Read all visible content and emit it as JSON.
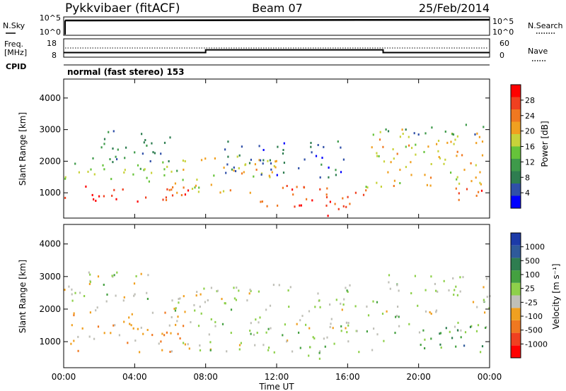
{
  "header": {
    "station": "Pykkvibaer (fitACF)",
    "beam": "Beam 07",
    "date": "25/Feb/2014"
  },
  "nsky_panel": {
    "left_label": "N.Sky",
    "left_ticks": [
      "10^5",
      "10^0"
    ],
    "right_label": "N.Search",
    "right_ticks": [
      "10^5",
      "10^0"
    ]
  },
  "freq_panel": {
    "left_label_1": "Freq.",
    "left_label_2": "[MHz]",
    "left_ticks": [
      "18",
      "8"
    ],
    "right_label": "Nave",
    "right_ticks": [
      "60",
      "0"
    ],
    "cpid_label": "CPID",
    "cpid_text": "normal (fast stereo) 153"
  },
  "colors": {
    "power": [
      "#0000ff",
      "#3050a8",
      "#2e7d50",
      "#3e9a4a",
      "#66c33a",
      "#c8d23a",
      "#f0a020",
      "#f07820",
      "#f04020",
      "#ff0000"
    ],
    "velocity": [
      "#ff0000",
      "#f04020",
      "#f07820",
      "#f0a020",
      "#c0c0b8",
      "#8ed04a",
      "#44a040",
      "#2e7d50",
      "#2f5a9a",
      "#1c3aa8"
    ]
  },
  "chart_data": [
    {
      "type": "heatmap",
      "name": "power",
      "ylabel": "Slant Range [km]",
      "yticks": [
        "4000",
        "3000",
        "2000",
        "1000"
      ],
      "ylim": [
        200,
        4600
      ],
      "xticks": [
        "00:00",
        "04:00",
        "08:00",
        "12:00",
        "16:00",
        "20:00",
        "00:00"
      ],
      "colorbar_label": "Power [dB]",
      "colorbar_ticks": [
        "28",
        "24",
        "20",
        "16",
        "12",
        "8",
        "4"
      ],
      "colorbar_range": [
        0,
        30
      ],
      "bands": [
        {
          "t0": 0,
          "t1": 7,
          "r0": 700,
          "r1": 1300,
          "value": 26
        },
        {
          "t0": 0,
          "t1": 7,
          "r0": 1300,
          "r1": 2000,
          "value": 14
        },
        {
          "t0": 1,
          "t1": 6,
          "r0": 2000,
          "r1": 3000,
          "value": 8
        },
        {
          "t0": 6,
          "t1": 12,
          "r0": 1000,
          "r1": 2300,
          "value": 18
        },
        {
          "t0": 9,
          "t1": 16,
          "r0": 1500,
          "r1": 2700,
          "value": 6
        },
        {
          "t0": 11,
          "t1": 17,
          "r0": 500,
          "r1": 1300,
          "value": 24
        },
        {
          "t0": 13,
          "t1": 15,
          "r0": 300,
          "r1": 800,
          "value": 28
        },
        {
          "t0": 17,
          "t1": 24,
          "r0": 1200,
          "r1": 3100,
          "value": 18
        },
        {
          "t0": 18,
          "t1": 24,
          "r0": 2800,
          "r1": 3200,
          "value": 8
        },
        {
          "t0": 22,
          "t1": 24,
          "r0": 700,
          "r1": 1300,
          "value": 26
        }
      ]
    },
    {
      "type": "heatmap",
      "name": "velocity",
      "ylabel": "Slant Range [km]",
      "yticks": [
        "4000",
        "3000",
        "2000",
        "1000"
      ],
      "ylim": [
        200,
        4600
      ],
      "xticks": [
        "00:00",
        "04:00",
        "08:00",
        "12:00",
        "16:00",
        "20:00",
        "00:00"
      ],
      "xlabel": "Time UT",
      "colorbar_label": "Velocity [m s⁻¹]",
      "colorbar_ticks": [
        "1000",
        "500",
        "100",
        "25",
        "-25",
        "-100",
        "-500",
        "-1000"
      ],
      "colorbar_range": [
        -1000,
        1000
      ],
      "bands": [
        {
          "t0": 0,
          "t1": 7,
          "r0": 700,
          "r1": 2000,
          "value": -300
        },
        {
          "t0": 0,
          "t1": 5,
          "r0": 2000,
          "r1": 3200,
          "value": 0
        },
        {
          "t0": 6,
          "t1": 18,
          "r0": 700,
          "r1": 2800,
          "value": 0
        },
        {
          "t0": 13.5,
          "t1": 15,
          "r0": 500,
          "r1": 1200,
          "value": 200
        },
        {
          "t0": 18,
          "t1": 24,
          "r0": 1300,
          "r1": 3100,
          "value": 0
        },
        {
          "t0": 20,
          "t1": 24,
          "r0": 700,
          "r1": 1500,
          "value": 400
        }
      ]
    }
  ],
  "timeseries": {
    "freq_mhz": [
      {
        "t0": 0,
        "t1": 8,
        "value": 10.5
      },
      {
        "t0": 8,
        "t1": 18,
        "value": 12.0
      },
      {
        "t0": 18,
        "t1": 24,
        "value": 10.5
      }
    ]
  }
}
